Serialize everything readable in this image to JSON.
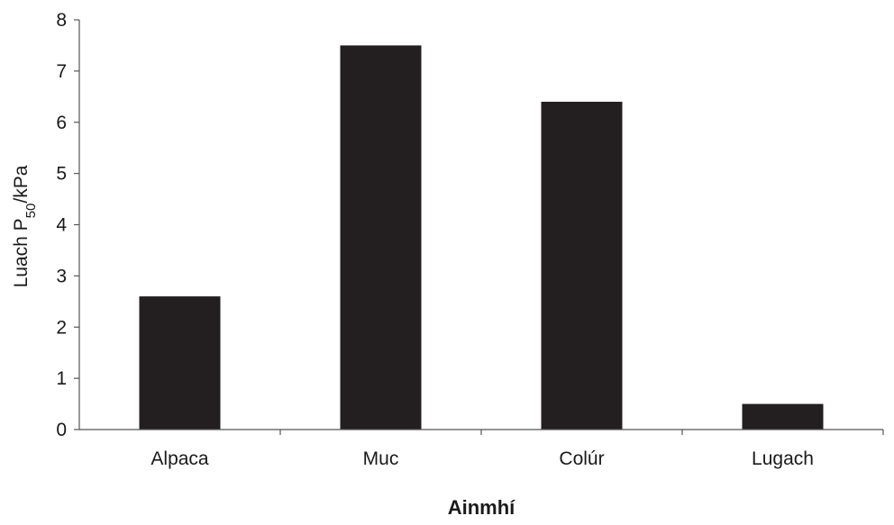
{
  "chart_data": {
    "type": "bar",
    "categories": [
      "Alpaca",
      "Muc",
      "Colúr",
      "Lugach"
    ],
    "values": [
      2.6,
      7.5,
      6.4,
      0.5
    ],
    "xlabel": "Ainmhí",
    "ylabel": {
      "prefix": "Luach P",
      "subscript": "50",
      "suffix": "/kPa"
    },
    "ylim": [
      0,
      8
    ],
    "yticks": [
      0,
      1,
      2,
      3,
      4,
      5,
      6,
      7,
      8
    ],
    "grid": false,
    "legend": "none",
    "colors": {
      "bar": "#231f20",
      "axis": "#555555",
      "text": "#1a1a1a"
    }
  }
}
